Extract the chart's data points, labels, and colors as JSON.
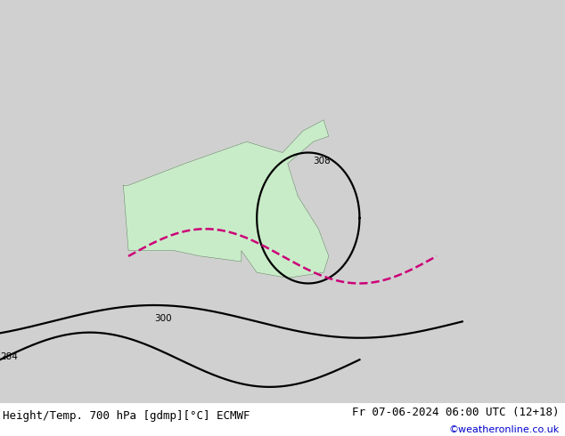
{
  "title_left": "Height/Temp. 700 hPa [gdmp][°C] ECMWF",
  "title_right": "Fr 07-06-2024 06:00 UTC (12+18)",
  "watermark": "©weatheronline.co.uk",
  "background_color": "#d0d0d0",
  "land_color": "#c8ecc8",
  "ocean_color": "#d0d0d0",
  "map_extent": [
    90,
    200,
    -62,
    12
  ],
  "title_fontsize": 9,
  "watermark_color": "#0000cc",
  "bottom_bar_color": "#ffffff"
}
